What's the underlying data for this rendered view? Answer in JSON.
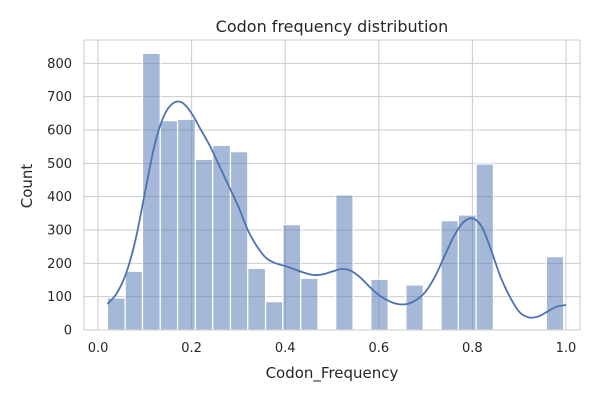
{
  "chart_data": {
    "type": "bar",
    "title": "Codon frequency distribution",
    "xlabel": "Codon_Frequency",
    "ylabel": "Count",
    "xlim": [
      -0.03,
      1.03
    ],
    "ylim": [
      0,
      870
    ],
    "xticks": [
      0.0,
      0.2,
      0.4,
      0.6,
      0.8,
      1.0
    ],
    "xtick_labels": [
      "0.0",
      "0.2",
      "0.4",
      "0.6",
      "0.8",
      "1.0"
    ],
    "yticks": [
      0,
      100,
      200,
      300,
      400,
      500,
      600,
      700,
      800
    ],
    "ytick_labels": [
      "0",
      "100",
      "200",
      "300",
      "400",
      "500",
      "600",
      "700",
      "800"
    ],
    "grid": true,
    "bin_width": 0.0375,
    "bins": [
      {
        "x0": 0.02,
        "x1": 0.058,
        "count": 96
      },
      {
        "x0": 0.058,
        "x1": 0.095,
        "count": 176
      },
      {
        "x0": 0.095,
        "x1": 0.133,
        "count": 830
      },
      {
        "x0": 0.133,
        "x1": 0.17,
        "count": 628
      },
      {
        "x0": 0.17,
        "x1": 0.208,
        "count": 632
      },
      {
        "x0": 0.208,
        "x1": 0.245,
        "count": 512
      },
      {
        "x0": 0.245,
        "x1": 0.283,
        "count": 554
      },
      {
        "x0": 0.283,
        "x1": 0.32,
        "count": 535
      },
      {
        "x0": 0.32,
        "x1": 0.358,
        "count": 185
      },
      {
        "x0": 0.358,
        "x1": 0.395,
        "count": 85
      },
      {
        "x0": 0.395,
        "x1": 0.433,
        "count": 316
      },
      {
        "x0": 0.433,
        "x1": 0.47,
        "count": 155
      },
      {
        "x0": 0.508,
        "x1": 0.545,
        "count": 405
      },
      {
        "x0": 0.583,
        "x1": 0.62,
        "count": 152
      },
      {
        "x0": 0.658,
        "x1": 0.695,
        "count": 135
      },
      {
        "x0": 0.733,
        "x1": 0.77,
        "count": 328
      },
      {
        "x0": 0.77,
        "x1": 0.808,
        "count": 345
      },
      {
        "x0": 0.808,
        "x1": 0.845,
        "count": 498
      },
      {
        "x0": 0.958,
        "x1": 0.995,
        "count": 220
      }
    ],
    "kde": {
      "x": [
        0.02,
        0.04,
        0.06,
        0.08,
        0.1,
        0.12,
        0.14,
        0.16,
        0.18,
        0.2,
        0.22,
        0.24,
        0.26,
        0.28,
        0.3,
        0.32,
        0.34,
        0.36,
        0.38,
        0.4,
        0.42,
        0.44,
        0.46,
        0.48,
        0.5,
        0.52,
        0.54,
        0.56,
        0.58,
        0.6,
        0.62,
        0.64,
        0.66,
        0.68,
        0.7,
        0.72,
        0.74,
        0.76,
        0.78,
        0.8,
        0.82,
        0.84,
        0.86,
        0.88,
        0.9,
        0.92,
        0.94,
        0.96,
        0.98,
        1.0
      ],
      "y": [
        78,
        110,
        170,
        270,
        410,
        550,
        640,
        680,
        682,
        650,
        600,
        550,
        490,
        430,
        370,
        300,
        250,
        215,
        200,
        192,
        182,
        172,
        165,
        167,
        175,
        183,
        178,
        158,
        130,
        105,
        88,
        78,
        78,
        90,
        115,
        160,
        220,
        280,
        322,
        335,
        310,
        240,
        160,
        100,
        55,
        38,
        40,
        55,
        70,
        75
      ]
    },
    "colors": {
      "bar_fill": "#4c72b0",
      "bar_opacity": 0.5,
      "kde_line": "#4c72b0"
    }
  }
}
